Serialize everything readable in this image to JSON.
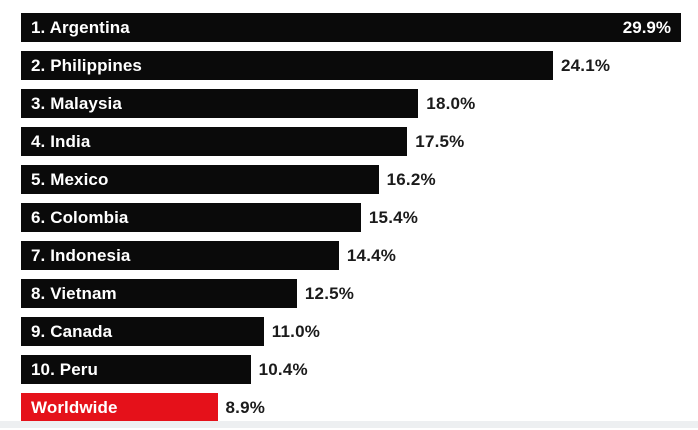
{
  "chart_data": {
    "type": "bar",
    "orientation": "horizontal",
    "title": "",
    "xlabel": "",
    "ylabel": "",
    "unit": "%",
    "scale_max_value": 29.9,
    "grid": false,
    "legend": false,
    "categories": [
      "1. Argentina",
      "2. Philippines",
      "3. Malaysia",
      "4. India",
      "5. Mexico",
      "6. Colombia",
      "7. Indonesia",
      "8. Vietnam",
      "9. Canada",
      "10. Peru",
      "Worldwide"
    ],
    "values": [
      29.9,
      24.1,
      18.0,
      17.5,
      16.2,
      15.4,
      14.4,
      12.5,
      11.0,
      10.4,
      8.9
    ],
    "items": [
      {
        "label": "1. Argentina",
        "value": 29.9,
        "value_label": "29.9%",
        "value_inside": true,
        "highlight": false
      },
      {
        "label": "2. Philippines",
        "value": 24.1,
        "value_label": "24.1%",
        "value_inside": false,
        "highlight": false
      },
      {
        "label": "3. Malaysia",
        "value": 18.0,
        "value_label": "18.0%",
        "value_inside": false,
        "highlight": false
      },
      {
        "label": "4. India",
        "value": 17.5,
        "value_label": "17.5%",
        "value_inside": false,
        "highlight": false
      },
      {
        "label": "5. Mexico",
        "value": 16.2,
        "value_label": "16.2%",
        "value_inside": false,
        "highlight": false
      },
      {
        "label": "6. Colombia",
        "value": 15.4,
        "value_label": "15.4%",
        "value_inside": false,
        "highlight": false
      },
      {
        "label": "7. Indonesia",
        "value": 14.4,
        "value_label": "14.4%",
        "value_inside": false,
        "highlight": false
      },
      {
        "label": "8. Vietnam",
        "value": 12.5,
        "value_label": "12.5%",
        "value_inside": false,
        "highlight": false
      },
      {
        "label": "9. Canada",
        "value": 11.0,
        "value_label": "11.0%",
        "value_inside": false,
        "highlight": false
      },
      {
        "label": "10. Peru",
        "value": 10.4,
        "value_label": "10.4%",
        "value_inside": false,
        "highlight": false
      },
      {
        "label": "Worldwide",
        "value": 8.9,
        "value_label": "8.9%",
        "value_inside": false,
        "highlight": true
      }
    ],
    "colors": {
      "bar": "#0a0a0a",
      "highlight_bar": "#e5111a",
      "bar_label_text": "#ffffff",
      "value_text": "#1b1b1b",
      "background": "#ffffff"
    }
  }
}
